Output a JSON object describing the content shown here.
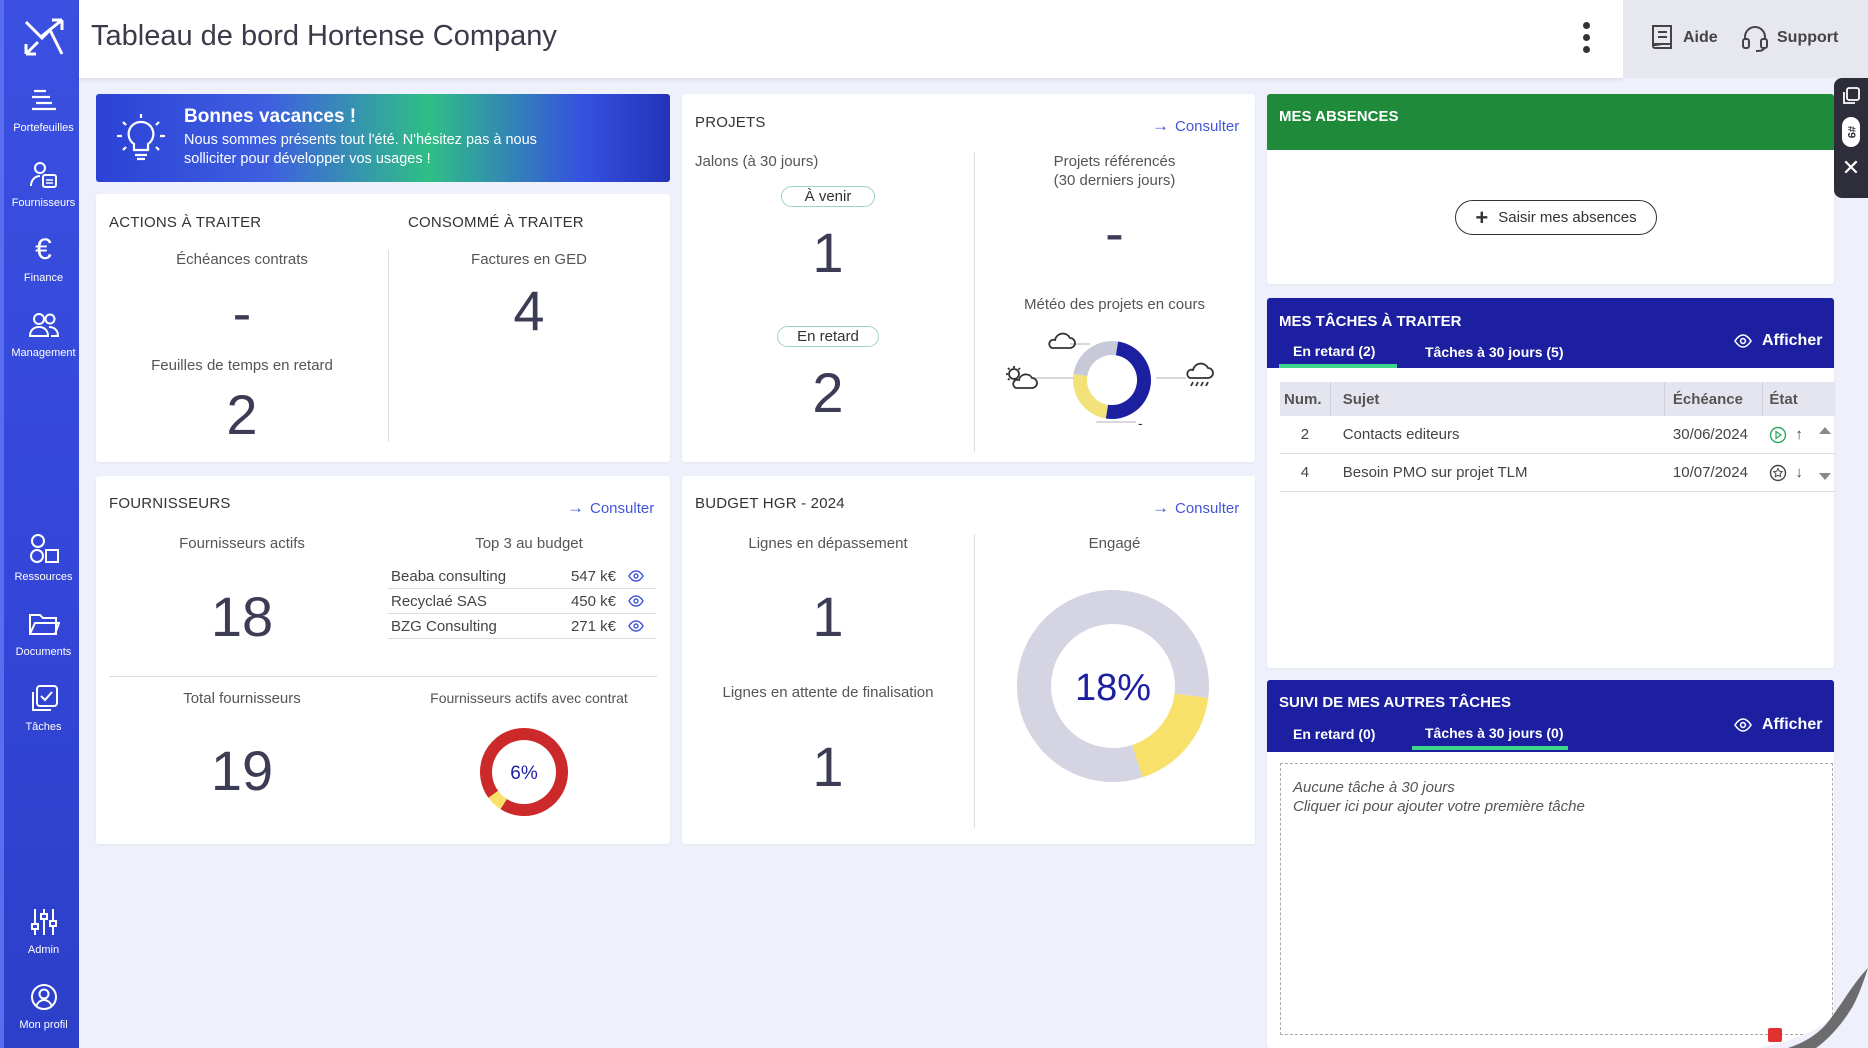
{
  "header": {
    "title": "Tableau de bord Hortense Company",
    "help": "Aide",
    "support": "Support"
  },
  "sidebar": {
    "items": [
      {
        "label": "Portefeuilles"
      },
      {
        "label": "Fournisseurs"
      },
      {
        "label": "Finance"
      },
      {
        "label": "Management"
      },
      {
        "label": "Ressources"
      },
      {
        "label": "Documents"
      },
      {
        "label": "Tâches"
      },
      {
        "label": "Admin"
      },
      {
        "label": "Mon profil"
      }
    ]
  },
  "edge": {
    "badge": "#9"
  },
  "banner": {
    "title": "Bonnes vacances !",
    "text": "Nous sommes présents tout l'été. N'hésitez pas à nous solliciter pour développer vos usages !"
  },
  "actions": {
    "title": "Actions à traiter",
    "echeances_label": "Échéances contrats",
    "echeances_value": "-",
    "feuilles_label": "Feuilles de temps en retard",
    "feuilles_value": "2"
  },
  "consomme": {
    "title": "Consommé à traiter",
    "factures_label": "Factures en GED",
    "factures_value": "4"
  },
  "projets": {
    "title": "Projets",
    "consult": "Consulter",
    "jalons_label": "Jalons (à 30 jours)",
    "avenir_label": "À venir",
    "avenir_value": "1",
    "retard_label": "En retard",
    "retard_value": "2",
    "referencés_label_1": "Projets référencés",
    "referencés_label_2": "(30 derniers jours)",
    "referencés_value": "-",
    "meteo_label": "Météo des projets en cours",
    "meteo_dash": "-",
    "meteo": [
      {
        "kind": "sunny",
        "share": 0.25,
        "color": "#f3e27a"
      },
      {
        "kind": "cloudy",
        "share": 0.25,
        "color": "#c8c9d8"
      },
      {
        "kind": "rain",
        "share": 0.5,
        "color": "#1c1fa0"
      }
    ]
  },
  "fournisseurs": {
    "title": "Fournisseurs",
    "consult": "Consulter",
    "actifs_label": "Fournisseurs actifs",
    "actifs_value": "18",
    "top3_label": "Top 3 au budget",
    "top3": [
      {
        "name": "Beaba consulting",
        "value": "547 k€"
      },
      {
        "name": "Recyclaé SAS",
        "value": "450 k€"
      },
      {
        "name": "BZG Consulting",
        "value": "271 k€"
      }
    ],
    "total_label": "Total fournisseurs",
    "total_value": "19",
    "contrat_label": "Fournisseurs actifs avec contrat",
    "contrat_pct": "6%",
    "contrat_share": 0.06
  },
  "budget": {
    "title": "Budget HGR - 2024",
    "consult": "Consulter",
    "depassement_label": "Lignes en dépassement",
    "depassement_value": "1",
    "attente_label": "Lignes en attente de finalisation",
    "attente_value": "1",
    "engage_label": "Engagé",
    "engage_pct": "18%",
    "engage_share": 0.18
  },
  "absences": {
    "title": "Mes absences",
    "button": "Saisir mes absences"
  },
  "taches": {
    "title": "Mes tâches à traiter",
    "tab1": "En retard (2)",
    "tab2": "Tâches à 30 jours (5)",
    "afficher": "Afficher",
    "columns": {
      "num": "Num.",
      "sujet": "Sujet",
      "echeance": "Échéance",
      "etat": "État"
    },
    "rows": [
      {
        "num": "2",
        "sujet": "Contacts editeurs",
        "echeance": "30/06/2024"
      },
      {
        "num": "4",
        "sujet": "Besoin PMO sur projet TLM",
        "echeance": "10/07/2024"
      }
    ]
  },
  "suivi": {
    "title": "Suivi de mes autres tâches",
    "tab1": "En retard (0)",
    "tab2": "Tâches à 30 jours (0)",
    "afficher": "Afficher",
    "empty_line1": "Aucune tâche à 30 jours",
    "empty_line2": "Cliquer ici pour ajouter votre première tâche"
  },
  "colors": {
    "sidebar": "#3346d8",
    "accent": "#4456d8",
    "green": "#1e8a3a",
    "navy": "#1c1fa0",
    "donut_red": "#cc2a2a",
    "donut_yellow": "#f7e16a",
    "donut_grey": "#d4d4e2"
  }
}
